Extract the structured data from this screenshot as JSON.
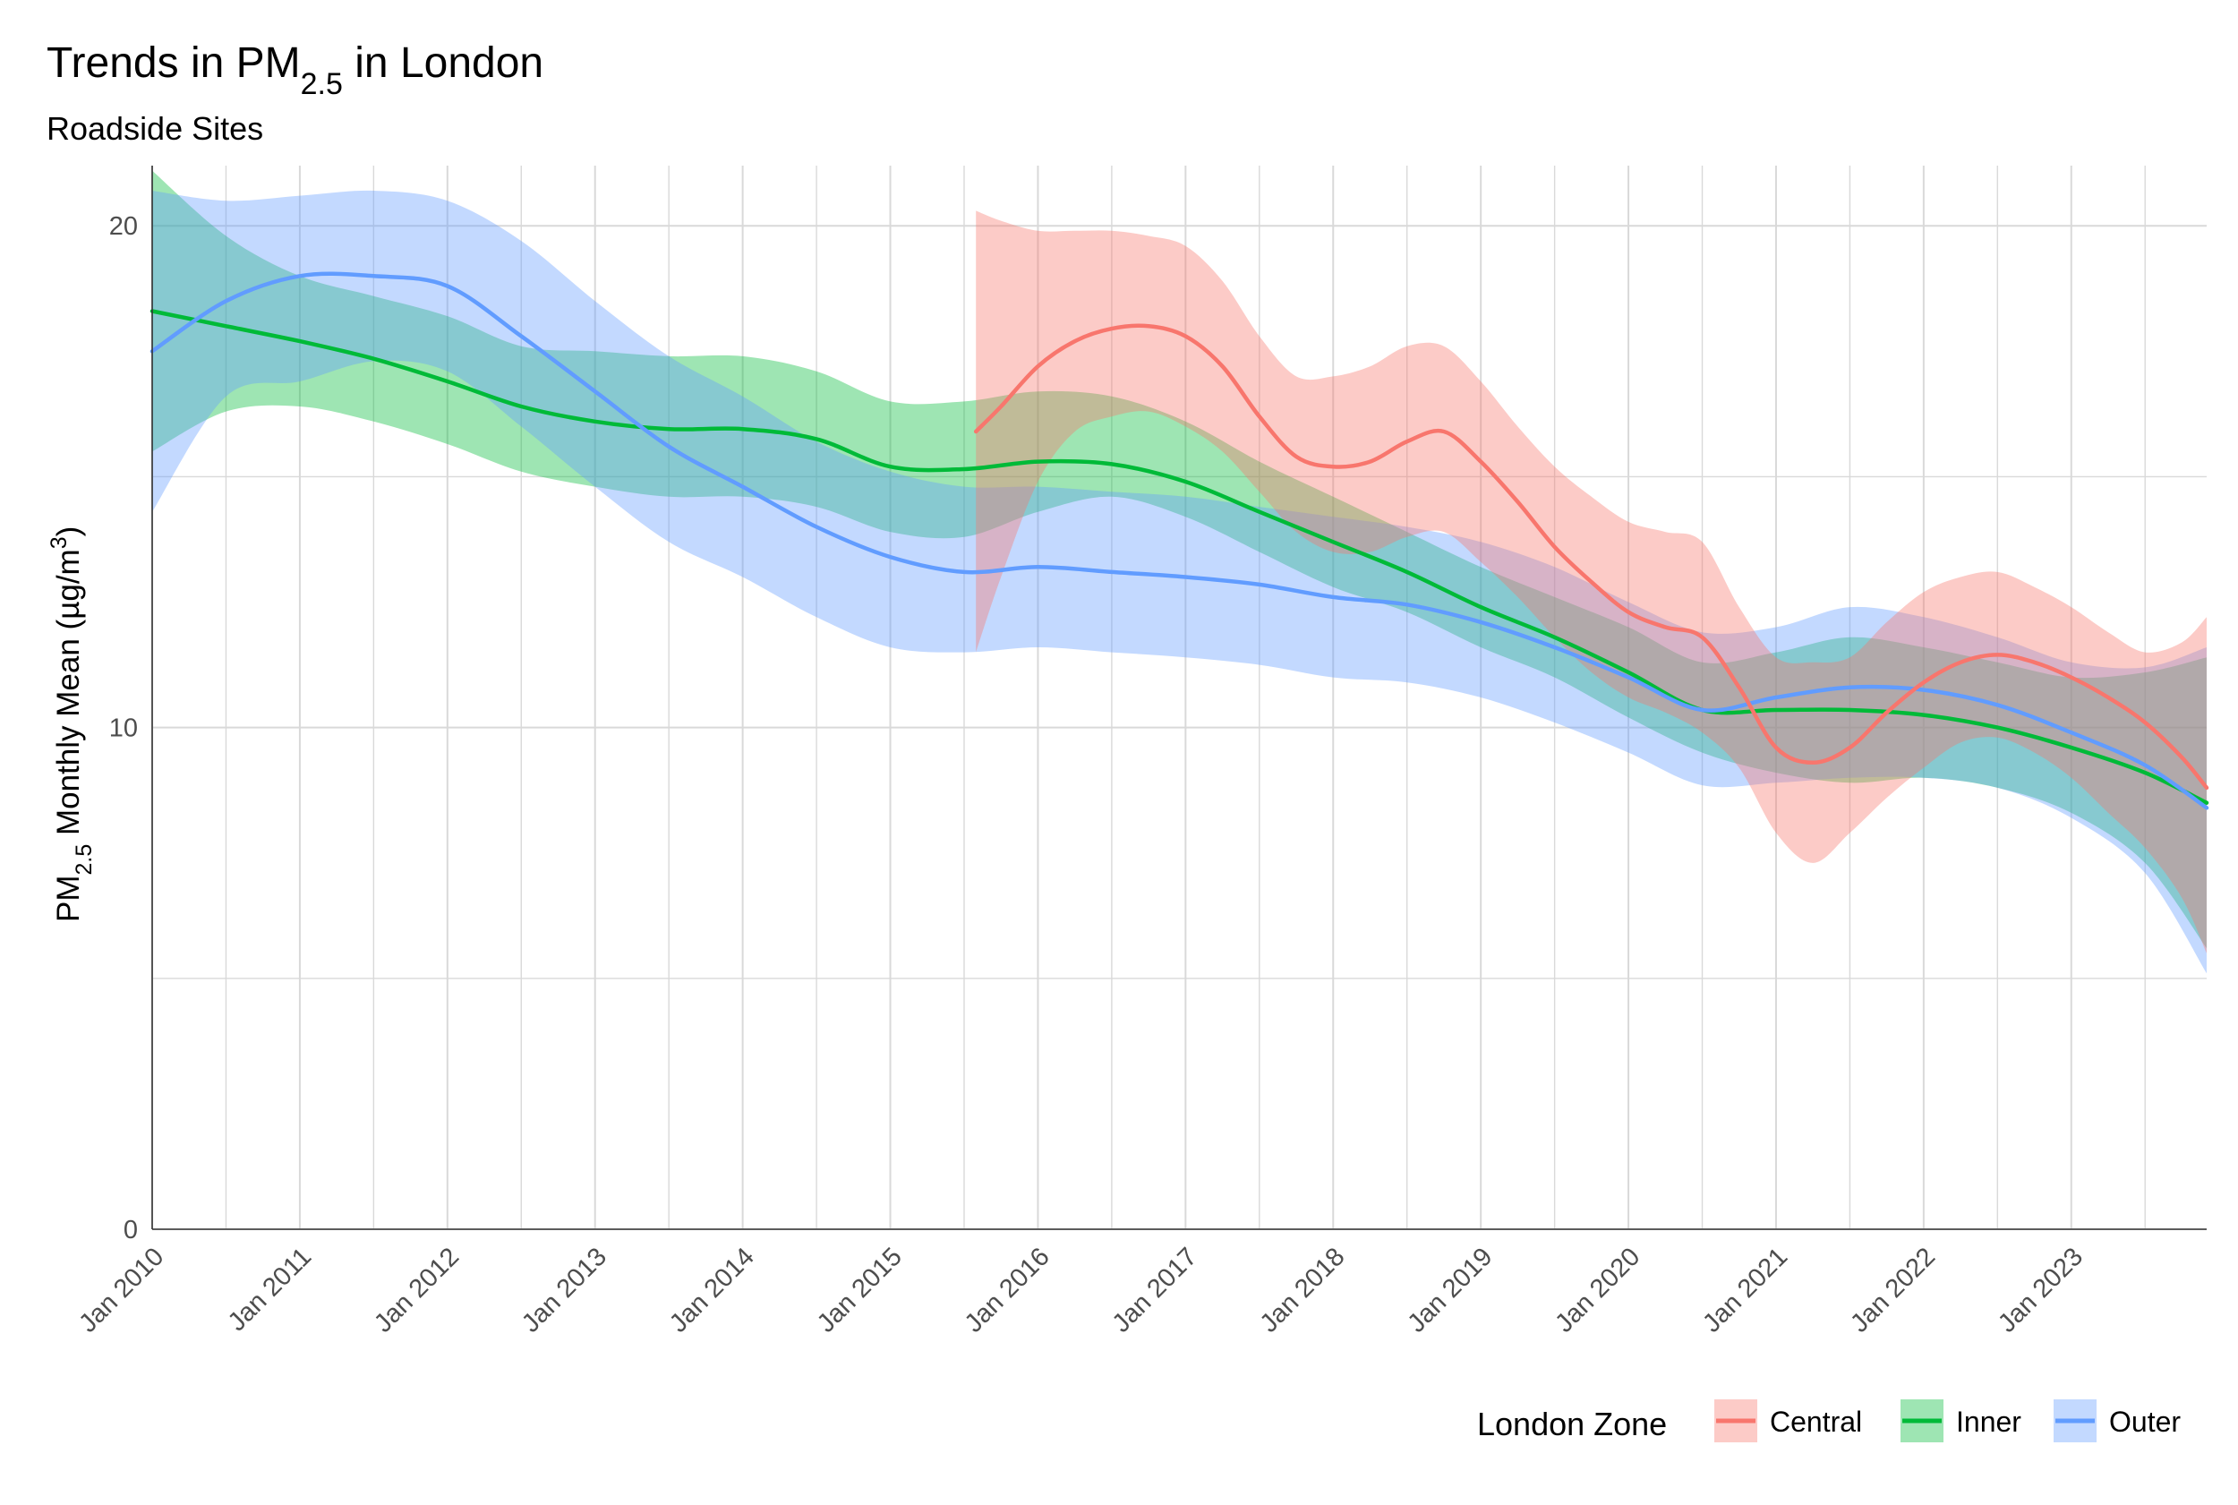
{
  "chart_data": {
    "type": "line",
    "title": {
      "pre": "Trends in PM",
      "sub": "2.5",
      "post": " in London"
    },
    "subtitle": "Roadside Sites",
    "ylabel": {
      "pre": "PM",
      "sub": "2.5",
      "mid": " Monthly Mean (µg/m",
      "sup": "3",
      "post": ")"
    },
    "xlabel": "",
    "xlim": [
      2010.0,
      2023.917
    ],
    "ylim": [
      0,
      21.2
    ],
    "y_ticks": [
      0,
      10,
      20
    ],
    "x_ticks": [
      {
        "x": 2010,
        "label": "Jan 2010"
      },
      {
        "x": 2011,
        "label": "Jan 2011"
      },
      {
        "x": 2012,
        "label": "Jan 2012"
      },
      {
        "x": 2013,
        "label": "Jan 2013"
      },
      {
        "x": 2014,
        "label": "Jan 2014"
      },
      {
        "x": 2015,
        "label": "Jan 2015"
      },
      {
        "x": 2016,
        "label": "Jan 2016"
      },
      {
        "x": 2017,
        "label": "Jan 2017"
      },
      {
        "x": 2018,
        "label": "Jan 2018"
      },
      {
        "x": 2019,
        "label": "Jan 2019"
      },
      {
        "x": 2020,
        "label": "Jan 2020"
      },
      {
        "x": 2021,
        "label": "Jan 2021"
      },
      {
        "x": 2022,
        "label": "Jan 2022"
      },
      {
        "x": 2023,
        "label": "Jan 2023"
      }
    ],
    "legend": {
      "title": "London Zone",
      "position": "bottom-right"
    },
    "series": [
      {
        "name": "Inner",
        "color": "#00ba38",
        "fill": "#00ba38",
        "x": [
          2010.0,
          2010.5,
          2011.0,
          2011.5,
          2012.0,
          2012.5,
          2013.0,
          2013.5,
          2014.0,
          2014.5,
          2015.0,
          2015.5,
          2016.0,
          2016.5,
          2017.0,
          2017.5,
          2018.0,
          2018.5,
          2019.0,
          2019.5,
          2020.0,
          2020.5,
          2021.0,
          2021.5,
          2022.0,
          2022.5,
          2023.0,
          2023.5,
          2023.917
        ],
        "y": [
          18.3,
          18.0,
          17.7,
          17.35,
          16.9,
          16.4,
          16.1,
          15.95,
          15.95,
          15.75,
          15.2,
          15.15,
          15.3,
          15.25,
          14.9,
          14.3,
          13.7,
          13.1,
          12.4,
          11.8,
          11.1,
          10.35,
          10.35,
          10.35,
          10.25,
          10.0,
          9.6,
          9.1,
          8.5
        ],
        "lower": [
          15.5,
          16.3,
          16.4,
          16.1,
          15.65,
          15.1,
          14.8,
          14.6,
          14.6,
          14.4,
          13.9,
          13.8,
          14.3,
          14.6,
          14.2,
          13.5,
          12.8,
          12.3,
          11.6,
          11.0,
          10.2,
          9.5,
          9.1,
          8.9,
          9.0,
          8.8,
          8.3,
          7.3,
          5.6
        ],
        "upper": [
          21.1,
          19.8,
          19.0,
          18.6,
          18.2,
          17.6,
          17.5,
          17.4,
          17.4,
          17.1,
          16.5,
          16.5,
          16.7,
          16.6,
          16.1,
          15.3,
          14.6,
          13.9,
          13.2,
          12.6,
          12.0,
          11.3,
          11.5,
          11.8,
          11.6,
          11.3,
          11.0,
          11.1,
          11.4
        ]
      },
      {
        "name": "Outer",
        "color": "#619cff",
        "fill": "#619cff",
        "x": [
          2010.0,
          2010.5,
          2011.0,
          2011.5,
          2012.0,
          2012.5,
          2013.0,
          2013.5,
          2014.0,
          2014.5,
          2015.0,
          2015.5,
          2016.0,
          2016.5,
          2017.0,
          2017.5,
          2018.0,
          2018.5,
          2019.0,
          2019.5,
          2020.0,
          2020.5,
          2021.0,
          2021.5,
          2022.0,
          2022.5,
          2023.0,
          2023.5,
          2023.917
        ],
        "y": [
          17.5,
          18.5,
          19.0,
          19.0,
          18.8,
          17.8,
          16.7,
          15.6,
          14.8,
          14.0,
          13.4,
          13.1,
          13.2,
          13.1,
          13.0,
          12.85,
          12.6,
          12.45,
          12.1,
          11.6,
          11.0,
          10.35,
          10.6,
          10.8,
          10.75,
          10.45,
          9.9,
          9.25,
          8.4
        ],
        "lower": [
          14.3,
          16.6,
          16.9,
          17.3,
          17.1,
          16.0,
          14.8,
          13.7,
          13.0,
          12.2,
          11.6,
          11.5,
          11.6,
          11.5,
          11.4,
          11.25,
          11.0,
          10.9,
          10.6,
          10.1,
          9.5,
          8.85,
          8.9,
          9.0,
          9.0,
          8.8,
          8.2,
          7.1,
          5.1
        ],
        "upper": [
          20.7,
          20.5,
          20.6,
          20.7,
          20.5,
          19.7,
          18.5,
          17.4,
          16.6,
          15.7,
          15.1,
          14.8,
          14.8,
          14.7,
          14.6,
          14.4,
          14.2,
          14.0,
          13.7,
          13.2,
          12.5,
          11.9,
          12.0,
          12.4,
          12.2,
          11.8,
          11.3,
          11.2,
          11.6
        ]
      },
      {
        "name": "Central",
        "color": "#f8766d",
        "fill": "#f8766d",
        "x": [
          2015.58,
          2015.75,
          2016.0,
          2016.25,
          2016.5,
          2016.75,
          2017.0,
          2017.25,
          2017.5,
          2017.75,
          2018.0,
          2018.25,
          2018.5,
          2018.75,
          2019.0,
          2019.25,
          2019.5,
          2019.75,
          2020.0,
          2020.25,
          2020.5,
          2020.75,
          2021.0,
          2021.25,
          2021.5,
          2021.75,
          2022.0,
          2022.25,
          2022.5,
          2022.75,
          2023.0,
          2023.25,
          2023.5,
          2023.75,
          2023.917
        ],
        "y": [
          15.9,
          16.4,
          17.2,
          17.7,
          17.95,
          18.0,
          17.8,
          17.2,
          16.2,
          15.4,
          15.2,
          15.3,
          15.7,
          15.9,
          15.3,
          14.5,
          13.6,
          12.9,
          12.3,
          12.0,
          11.8,
          10.8,
          9.6,
          9.3,
          9.6,
          10.3,
          10.9,
          11.3,
          11.45,
          11.3,
          11.0,
          10.6,
          10.1,
          9.4,
          8.8
        ],
        "lower": [
          11.5,
          13.0,
          14.9,
          15.9,
          16.2,
          16.3,
          16.0,
          15.5,
          14.7,
          13.9,
          13.5,
          13.5,
          13.8,
          13.9,
          13.3,
          12.6,
          11.8,
          11.1,
          10.6,
          10.3,
          9.9,
          9.2,
          7.9,
          7.3,
          7.9,
          8.6,
          9.2,
          9.7,
          9.8,
          9.5,
          9.0,
          8.3,
          7.6,
          6.6,
          5.5
        ],
        "upper": [
          20.3,
          20.1,
          19.9,
          19.9,
          19.9,
          19.8,
          19.6,
          18.9,
          17.8,
          17.0,
          17.0,
          17.2,
          17.6,
          17.6,
          16.9,
          16.0,
          15.2,
          14.6,
          14.1,
          13.9,
          13.7,
          12.4,
          11.4,
          11.3,
          11.4,
          12.1,
          12.7,
          13.0,
          13.1,
          12.8,
          12.4,
          11.9,
          11.5,
          11.7,
          12.2
        ]
      }
    ],
    "legend_order": [
      "Central",
      "Inner",
      "Outer"
    ]
  }
}
